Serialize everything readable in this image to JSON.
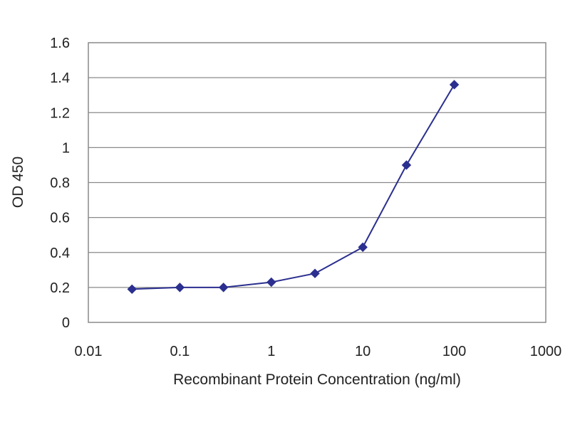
{
  "chart_data": {
    "type": "line",
    "title": "",
    "xlabel": "Recombinant Protein Concentration (ng/ml)",
    "ylabel": "OD 450",
    "x_scale": "log",
    "xlim": [
      0.01,
      1000
    ],
    "ylim": [
      0,
      1.6
    ],
    "x_ticks": [
      "0.01",
      "0.1",
      "1",
      "10",
      "100",
      "1000"
    ],
    "y_ticks": [
      "0",
      "0.2",
      "0.4",
      "0.6",
      "0.8",
      "1",
      "1.2",
      "1.4",
      "1.6"
    ],
    "grid": true,
    "legend": "none",
    "series": [
      {
        "color": "#2b2f8f",
        "x": [
          0.03,
          0.1,
          0.3,
          1,
          3,
          10,
          30,
          100
        ],
        "y": [
          0.19,
          0.2,
          0.2,
          0.23,
          0.28,
          0.43,
          0.9,
          1.36
        ]
      }
    ]
  }
}
